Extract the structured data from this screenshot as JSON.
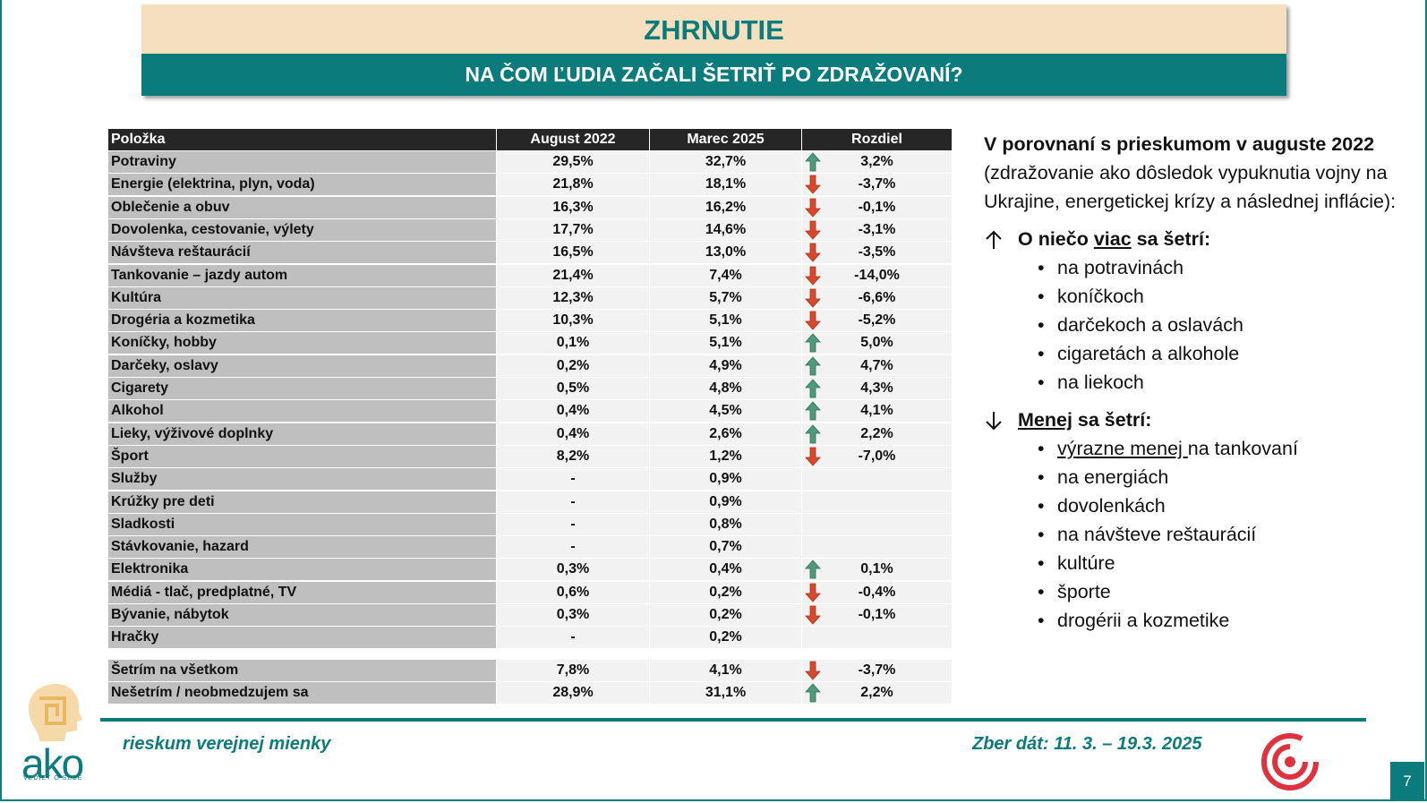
{
  "header": {
    "title": "ZHRNUTIE",
    "subtitle": "NA ČOM ĽUDIA ZAČALI ŠETRIŤ PO ZDRAŽOVANÍ?"
  },
  "table": {
    "columns": [
      "Položka",
      "August 2022",
      "Marec 2025",
      "Rozdiel"
    ],
    "rows": [
      [
        "Potraviny",
        "29,5%",
        "32,7%",
        "3,2%"
      ],
      [
        "Energie (elektrina, plyn, voda)",
        "21,8%",
        "18,1%",
        "-3,7%"
      ],
      [
        "Oblečenie a obuv",
        "16,3%",
        "16,2%",
        "-0,1%"
      ],
      [
        "Dovolenka, cestovanie, výlety",
        "17,7%",
        "14,6%",
        "-3,1%"
      ],
      [
        "Návšteva reštaurácií",
        "16,5%",
        "13,0%",
        "-3,5%"
      ],
      [
        "Tankovanie – jazdy autom",
        "21,4%",
        "7,4%",
        "-14,0%"
      ],
      [
        "Kultúra",
        "12,3%",
        "5,7%",
        "-6,6%"
      ],
      [
        "Drogéria a kozmetika",
        "10,3%",
        "5,1%",
        "-5,2%"
      ],
      [
        "Koníčky, hobby",
        "0,1%",
        "5,1%",
        "5,0%"
      ],
      [
        "Darčeky, oslavy",
        "0,2%",
        "4,9%",
        "4,7%"
      ],
      [
        "Cigarety",
        "0,5%",
        "4,8%",
        "4,3%"
      ],
      [
        "Alkohol",
        "0,4%",
        "4,5%",
        "4,1%"
      ],
      [
        "Lieky, výživové doplnky",
        "0,4%",
        "2,6%",
        "2,2%"
      ],
      [
        "Šport",
        "8,2%",
        "1,2%",
        "-7,0%"
      ],
      [
        "Služby",
        "-",
        "0,9%",
        null
      ],
      [
        "Krúžky pre deti",
        "-",
        "0,9%",
        null
      ],
      [
        "Sladkosti",
        "-",
        "0,8%",
        null
      ],
      [
        "Stávkovanie, hazard",
        "-",
        "0,7%",
        null
      ],
      [
        "Elektronika",
        "0,3%",
        "0,4%",
        "0,1%"
      ],
      [
        "Médiá - tlač, predplatné, TV",
        "0,6%",
        "0,2%",
        "-0,4%"
      ],
      [
        "Bývanie, nábytok",
        "0,3%",
        "0,2%",
        "-0,1%"
      ],
      [
        "Hračky",
        "-",
        "0,2%",
        null
      ]
    ],
    "summary_rows": [
      [
        "Šetrím na všetkom",
        "7,8%",
        "4,1%",
        "-3,7%"
      ],
      [
        "Nešetrím / neobmedzujem sa",
        "28,9%",
        "31,1%",
        "2,2%"
      ]
    ]
  },
  "notes": {
    "heading": "V porovnaní s prieskumom v auguste 2022",
    "intro": "(zdražovanie ako dôsledok vypuknutia vojny na Ukrajine, energetickej krízy a následnej inflácie):",
    "more": {
      "label": [
        "O niečo ",
        "viac",
        " sa šetrí:"
      ],
      "items": [
        "na potravinách",
        "koníčkoch",
        "darčekoch a oslavách",
        "cigaretách a alkohole",
        "na liekoch"
      ]
    },
    "less": {
      "label": [
        "Menej",
        " sa šetrí:"
      ],
      "items": [
        [
          "výrazne menej ",
          "na tankovaní"
        ],
        "na energiách",
        "dovolenkách",
        "na návšteve reštaurácií",
        "kultúre",
        "športe",
        "drogérii a kozmetike"
      ]
    }
  },
  "footer": {
    "survey": "rieskum verejnej mienky",
    "dates": "Zber dát: 11. 3. – 19.3. 2025",
    "page": "7",
    "logo": "ako",
    "logo_tagline": "VEDIEŤ O SEBE"
  }
}
